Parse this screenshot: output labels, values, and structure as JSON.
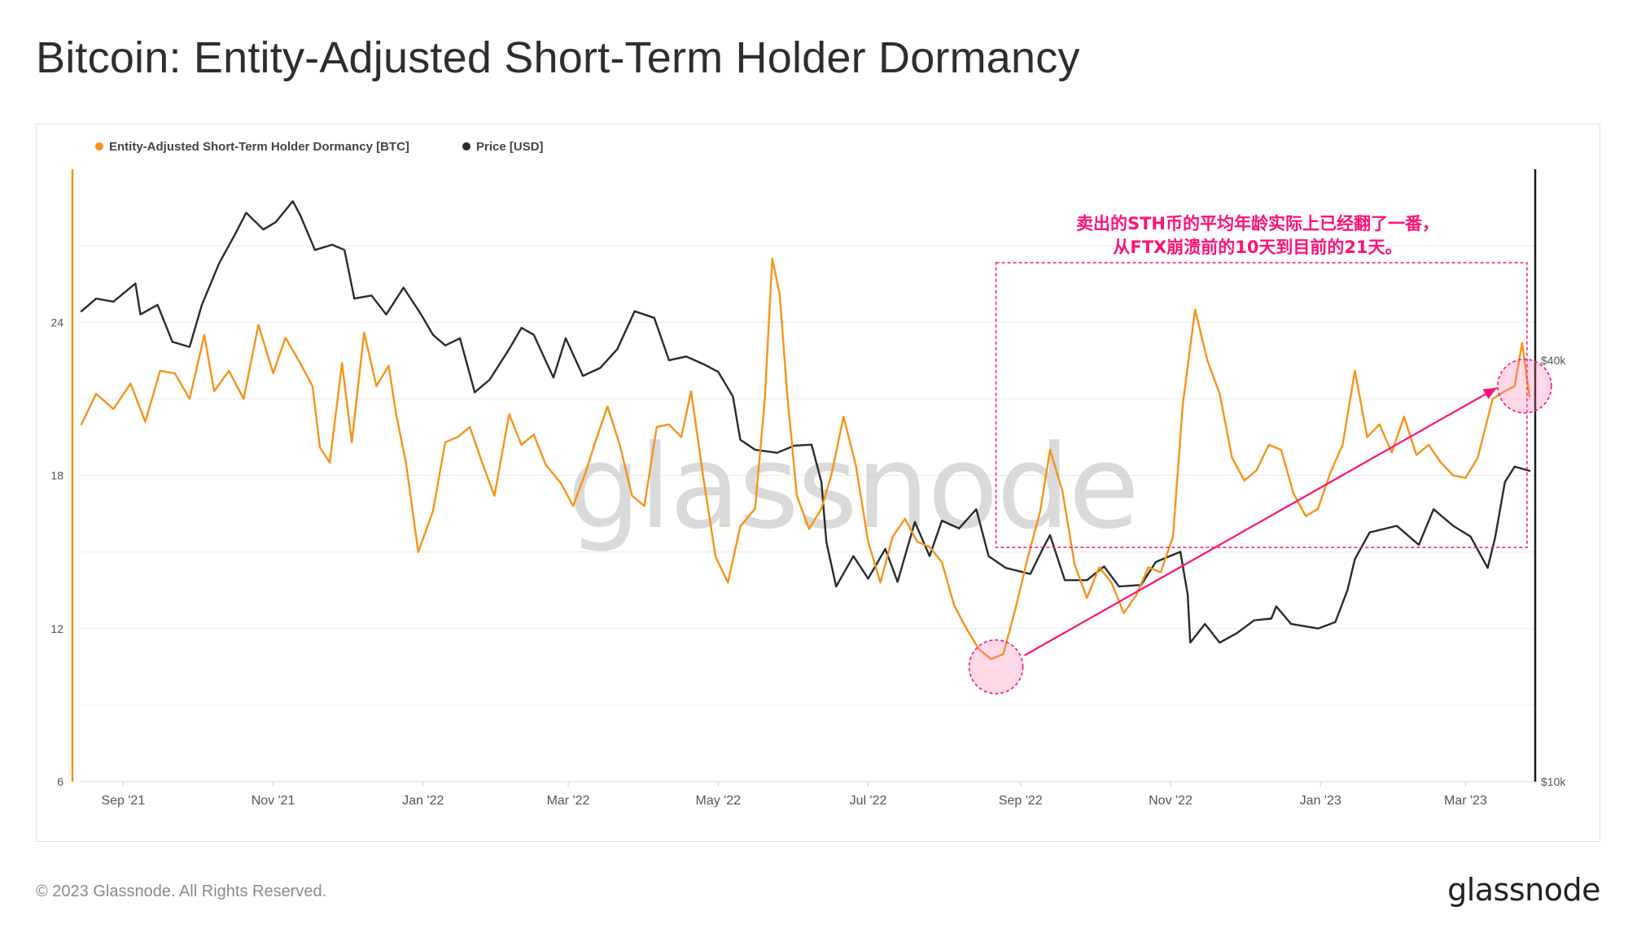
{
  "page": {
    "title": "Bitcoin: Entity-Adjusted Short-Term Holder Dormancy",
    "footer_copyright": "© 2023 Glassnode. All Rights Reserved.",
    "footer_logo": "glassnode",
    "watermark": "glassnode"
  },
  "colors": {
    "dormancy": "#f7931a",
    "price": "#2b2b2b",
    "annotation": "#ff1177",
    "grid": "#ececec",
    "axis_text": "#555555",
    "watermark": "#d4d4d4"
  },
  "chart_data": {
    "type": "line",
    "title": "Bitcoin: Entity-Adjusted Short-Term Holder Dormancy",
    "legend": [
      {
        "name": "Entity-Adjusted Short-Term Holder Dormancy [BTC]",
        "color": "#f7931a"
      },
      {
        "name": "Price [USD]",
        "color": "#2b2b2b"
      }
    ],
    "legend_position": "top-left",
    "grid": true,
    "x_ticks": [
      "Sep '21",
      "Nov '21",
      "Jan '22",
      "Mar '22",
      "May '22",
      "Jul '22",
      "Sep '22",
      "Nov '22",
      "Jan '23",
      "Mar '23"
    ],
    "x_range": [
      "2021-08-15",
      "2023-03-29"
    ],
    "y_left": {
      "ticks": [
        "6",
        "12",
        "18",
        "24"
      ],
      "range": [
        6,
        30
      ]
    },
    "y_right": {
      "ticks": [
        "$10k",
        "$40k"
      ],
      "scale": "log",
      "range": [
        10000,
        75000
      ]
    },
    "annotation": {
      "text_lines": [
        "卖出的STH币的平均年龄实际上已经翻了一番，",
        "从FTX崩溃前的10天到目前的21天。"
      ],
      "box_dates": [
        "2022-08-22",
        "2023-03-26"
      ],
      "from": {
        "date": "2022-08-22",
        "value": 10.5
      },
      "to": {
        "date": "2023-03-25",
        "value": 21.5
      }
    },
    "series": [
      {
        "name": "Entity-Adjusted Short-Term Holder Dormancy [BTC]",
        "axis": "left",
        "points": [
          [
            "2021-08-15",
            20.0
          ],
          [
            "2021-08-21",
            21.2
          ],
          [
            "2021-08-28",
            20.6
          ],
          [
            "2021-09-04",
            21.6
          ],
          [
            "2021-09-10",
            20.1
          ],
          [
            "2021-09-16",
            22.1
          ],
          [
            "2021-09-22",
            22.0
          ],
          [
            "2021-09-28",
            21.0
          ],
          [
            "2021-10-04",
            23.5
          ],
          [
            "2021-10-08",
            21.3
          ],
          [
            "2021-10-14",
            22.1
          ],
          [
            "2021-10-20",
            21.0
          ],
          [
            "2021-10-26",
            23.9
          ],
          [
            "2021-11-01",
            22.0
          ],
          [
            "2021-11-06",
            23.4
          ],
          [
            "2021-11-12",
            22.4
          ],
          [
            "2021-11-17",
            21.5
          ],
          [
            "2021-11-20",
            19.1
          ],
          [
            "2021-11-24",
            18.5
          ],
          [
            "2021-11-29",
            22.4
          ],
          [
            "2021-12-03",
            19.3
          ],
          [
            "2021-12-08",
            23.6
          ],
          [
            "2021-12-13",
            21.5
          ],
          [
            "2021-12-18",
            22.3
          ],
          [
            "2021-12-21",
            20.4
          ],
          [
            "2021-12-25",
            18.5
          ],
          [
            "2021-12-30",
            15.0
          ],
          [
            "2022-01-05",
            16.6
          ],
          [
            "2022-01-10",
            19.3
          ],
          [
            "2022-01-15",
            19.5
          ],
          [
            "2022-01-20",
            19.9
          ],
          [
            "2022-01-25",
            18.5
          ],
          [
            "2022-01-30",
            17.2
          ],
          [
            "2022-02-05",
            20.4
          ],
          [
            "2022-02-10",
            19.2
          ],
          [
            "2022-02-15",
            19.6
          ],
          [
            "2022-02-20",
            18.4
          ],
          [
            "2022-02-26",
            17.7
          ],
          [
            "2022-03-03",
            16.8
          ],
          [
            "2022-03-08",
            18.1
          ],
          [
            "2022-03-12",
            19.3
          ],
          [
            "2022-03-17",
            20.7
          ],
          [
            "2022-03-22",
            19.2
          ],
          [
            "2022-03-27",
            17.2
          ],
          [
            "2022-04-01",
            16.8
          ],
          [
            "2022-04-06",
            19.9
          ],
          [
            "2022-04-11",
            20.0
          ],
          [
            "2022-04-16",
            19.5
          ],
          [
            "2022-04-20",
            21.3
          ],
          [
            "2022-04-25",
            17.9
          ],
          [
            "2022-04-30",
            14.8
          ],
          [
            "2022-05-05",
            13.8
          ],
          [
            "2022-05-10",
            16.0
          ],
          [
            "2022-05-16",
            16.7
          ],
          [
            "2022-05-20",
            21.0
          ],
          [
            "2022-05-23",
            26.5
          ],
          [
            "2022-05-26",
            25.1
          ],
          [
            "2022-05-29",
            21.3
          ],
          [
            "2022-06-02",
            17.2
          ],
          [
            "2022-06-07",
            15.9
          ],
          [
            "2022-06-12",
            16.7
          ],
          [
            "2022-06-16",
            18.0
          ],
          [
            "2022-06-21",
            20.3
          ],
          [
            "2022-06-26",
            18.4
          ],
          [
            "2022-07-01",
            15.4
          ],
          [
            "2022-07-06",
            13.8
          ],
          [
            "2022-07-11",
            15.6
          ],
          [
            "2022-07-16",
            16.3
          ],
          [
            "2022-07-21",
            15.4
          ],
          [
            "2022-07-26",
            15.2
          ],
          [
            "2022-07-31",
            14.6
          ],
          [
            "2022-08-05",
            12.9
          ],
          [
            "2022-08-10",
            12.0
          ],
          [
            "2022-08-15",
            11.2
          ],
          [
            "2022-08-20",
            10.8
          ],
          [
            "2022-08-25",
            11.0
          ],
          [
            "2022-08-30",
            12.8
          ],
          [
            "2022-09-04",
            14.8
          ],
          [
            "2022-09-09",
            16.6
          ],
          [
            "2022-09-13",
            19.0
          ],
          [
            "2022-09-18",
            17.4
          ],
          [
            "2022-09-23",
            14.5
          ],
          [
            "2022-09-28",
            13.2
          ],
          [
            "2022-10-03",
            14.4
          ],
          [
            "2022-10-08",
            13.8
          ],
          [
            "2022-10-13",
            12.6
          ],
          [
            "2022-10-18",
            13.3
          ],
          [
            "2022-10-23",
            14.4
          ],
          [
            "2022-10-28",
            14.2
          ],
          [
            "2022-11-02",
            15.6
          ],
          [
            "2022-11-06",
            20.8
          ],
          [
            "2022-11-11",
            24.5
          ],
          [
            "2022-11-16",
            22.5
          ],
          [
            "2022-11-21",
            21.2
          ],
          [
            "2022-11-26",
            18.7
          ],
          [
            "2022-12-01",
            17.8
          ],
          [
            "2022-12-06",
            18.2
          ],
          [
            "2022-12-11",
            19.2
          ],
          [
            "2022-12-16",
            19.0
          ],
          [
            "2022-12-21",
            17.3
          ],
          [
            "2022-12-26",
            16.4
          ],
          [
            "2022-12-31",
            16.7
          ],
          [
            "2023-01-05",
            18.1
          ],
          [
            "2023-01-10",
            19.2
          ],
          [
            "2023-01-15",
            22.1
          ],
          [
            "2023-01-20",
            19.5
          ],
          [
            "2023-01-25",
            20.0
          ],
          [
            "2023-01-30",
            18.9
          ],
          [
            "2023-02-04",
            20.3
          ],
          [
            "2023-02-09",
            18.8
          ],
          [
            "2023-02-14",
            19.2
          ],
          [
            "2023-02-19",
            18.5
          ],
          [
            "2023-02-24",
            18.0
          ],
          [
            "2023-03-01",
            17.9
          ],
          [
            "2023-03-06",
            18.7
          ],
          [
            "2023-03-12",
            21.0
          ],
          [
            "2023-03-17",
            21.3
          ],
          [
            "2023-03-21",
            21.5
          ],
          [
            "2023-03-24",
            23.2
          ],
          [
            "2023-03-27",
            21.1
          ]
        ]
      },
      {
        "name": "Price [USD]",
        "axis": "right",
        "points": [
          [
            "2021-08-15",
            47000
          ],
          [
            "2021-08-21",
            49000
          ],
          [
            "2021-08-28",
            48500
          ],
          [
            "2021-09-06",
            51500
          ],
          [
            "2021-09-08",
            46500
          ],
          [
            "2021-09-15",
            48000
          ],
          [
            "2021-09-21",
            42500
          ],
          [
            "2021-09-28",
            41800
          ],
          [
            "2021-10-03",
            48000
          ],
          [
            "2021-10-10",
            55000
          ],
          [
            "2021-10-17",
            61000
          ],
          [
            "2021-10-21",
            65000
          ],
          [
            "2021-10-28",
            61500
          ],
          [
            "2021-11-02",
            63000
          ],
          [
            "2021-11-09",
            67500
          ],
          [
            "2021-11-12",
            64500
          ],
          [
            "2021-11-18",
            57500
          ],
          [
            "2021-11-25",
            58500
          ],
          [
            "2021-11-30",
            57500
          ],
          [
            "2021-12-04",
            49000
          ],
          [
            "2021-12-11",
            49500
          ],
          [
            "2021-12-17",
            46500
          ],
          [
            "2021-12-24",
            50800
          ],
          [
            "2021-12-31",
            46600
          ],
          [
            "2022-01-05",
            43500
          ],
          [
            "2022-01-10",
            42000
          ],
          [
            "2022-01-16",
            43000
          ],
          [
            "2022-01-22",
            36000
          ],
          [
            "2022-01-28",
            37500
          ],
          [
            "2022-02-05",
            41500
          ],
          [
            "2022-02-10",
            44500
          ],
          [
            "2022-02-15",
            43500
          ],
          [
            "2022-02-23",
            37800
          ],
          [
            "2022-02-28",
            43000
          ],
          [
            "2022-03-07",
            38000
          ],
          [
            "2022-03-14",
            39000
          ],
          [
            "2022-03-21",
            41500
          ],
          [
            "2022-03-28",
            47000
          ],
          [
            "2022-04-05",
            46000
          ],
          [
            "2022-04-11",
            40000
          ],
          [
            "2022-04-18",
            40500
          ],
          [
            "2022-04-25",
            39500
          ],
          [
            "2022-05-01",
            38500
          ],
          [
            "2022-05-07",
            35500
          ],
          [
            "2022-05-10",
            30800
          ],
          [
            "2022-05-16",
            29800
          ],
          [
            "2022-05-25",
            29500
          ],
          [
            "2022-06-01",
            30200
          ],
          [
            "2022-06-08",
            30300
          ],
          [
            "2022-06-12",
            26800
          ],
          [
            "2022-06-14",
            22000
          ],
          [
            "2022-06-18",
            19000
          ],
          [
            "2022-06-25",
            21000
          ],
          [
            "2022-07-01",
            19500
          ],
          [
            "2022-07-08",
            21500
          ],
          [
            "2022-07-13",
            19300
          ],
          [
            "2022-07-20",
            23500
          ],
          [
            "2022-07-26",
            21000
          ],
          [
            "2022-07-31",
            23600
          ],
          [
            "2022-08-07",
            23000
          ],
          [
            "2022-08-14",
            24500
          ],
          [
            "2022-08-19",
            21000
          ],
          [
            "2022-08-26",
            20200
          ],
          [
            "2022-09-05",
            19800
          ],
          [
            "2022-09-10",
            21500
          ],
          [
            "2022-09-13",
            22500
          ],
          [
            "2022-09-19",
            19400
          ],
          [
            "2022-09-28",
            19400
          ],
          [
            "2022-10-05",
            20300
          ],
          [
            "2022-10-11",
            19000
          ],
          [
            "2022-10-20",
            19100
          ],
          [
            "2022-10-26",
            20600
          ],
          [
            "2022-11-05",
            21300
          ],
          [
            "2022-11-08",
            18500
          ],
          [
            "2022-11-09",
            15800
          ],
          [
            "2022-11-15",
            16800
          ],
          [
            "2022-11-21",
            15800
          ],
          [
            "2022-11-28",
            16300
          ],
          [
            "2022-12-05",
            17000
          ],
          [
            "2022-12-12",
            17100
          ],
          [
            "2022-12-14",
            17800
          ],
          [
            "2022-12-20",
            16800
          ],
          [
            "2022-12-31",
            16550
          ],
          [
            "2023-01-07",
            16900
          ],
          [
            "2023-01-12",
            18800
          ],
          [
            "2023-01-15",
            20800
          ],
          [
            "2023-01-21",
            22700
          ],
          [
            "2023-02-01",
            23200
          ],
          [
            "2023-02-10",
            21800
          ],
          [
            "2023-02-16",
            24500
          ],
          [
            "2023-02-24",
            23200
          ],
          [
            "2023-03-03",
            22400
          ],
          [
            "2023-03-10",
            20200
          ],
          [
            "2023-03-13",
            22300
          ],
          [
            "2023-03-17",
            26800
          ],
          [
            "2023-03-21",
            28200
          ],
          [
            "2023-03-27",
            27800
          ]
        ]
      }
    ]
  }
}
